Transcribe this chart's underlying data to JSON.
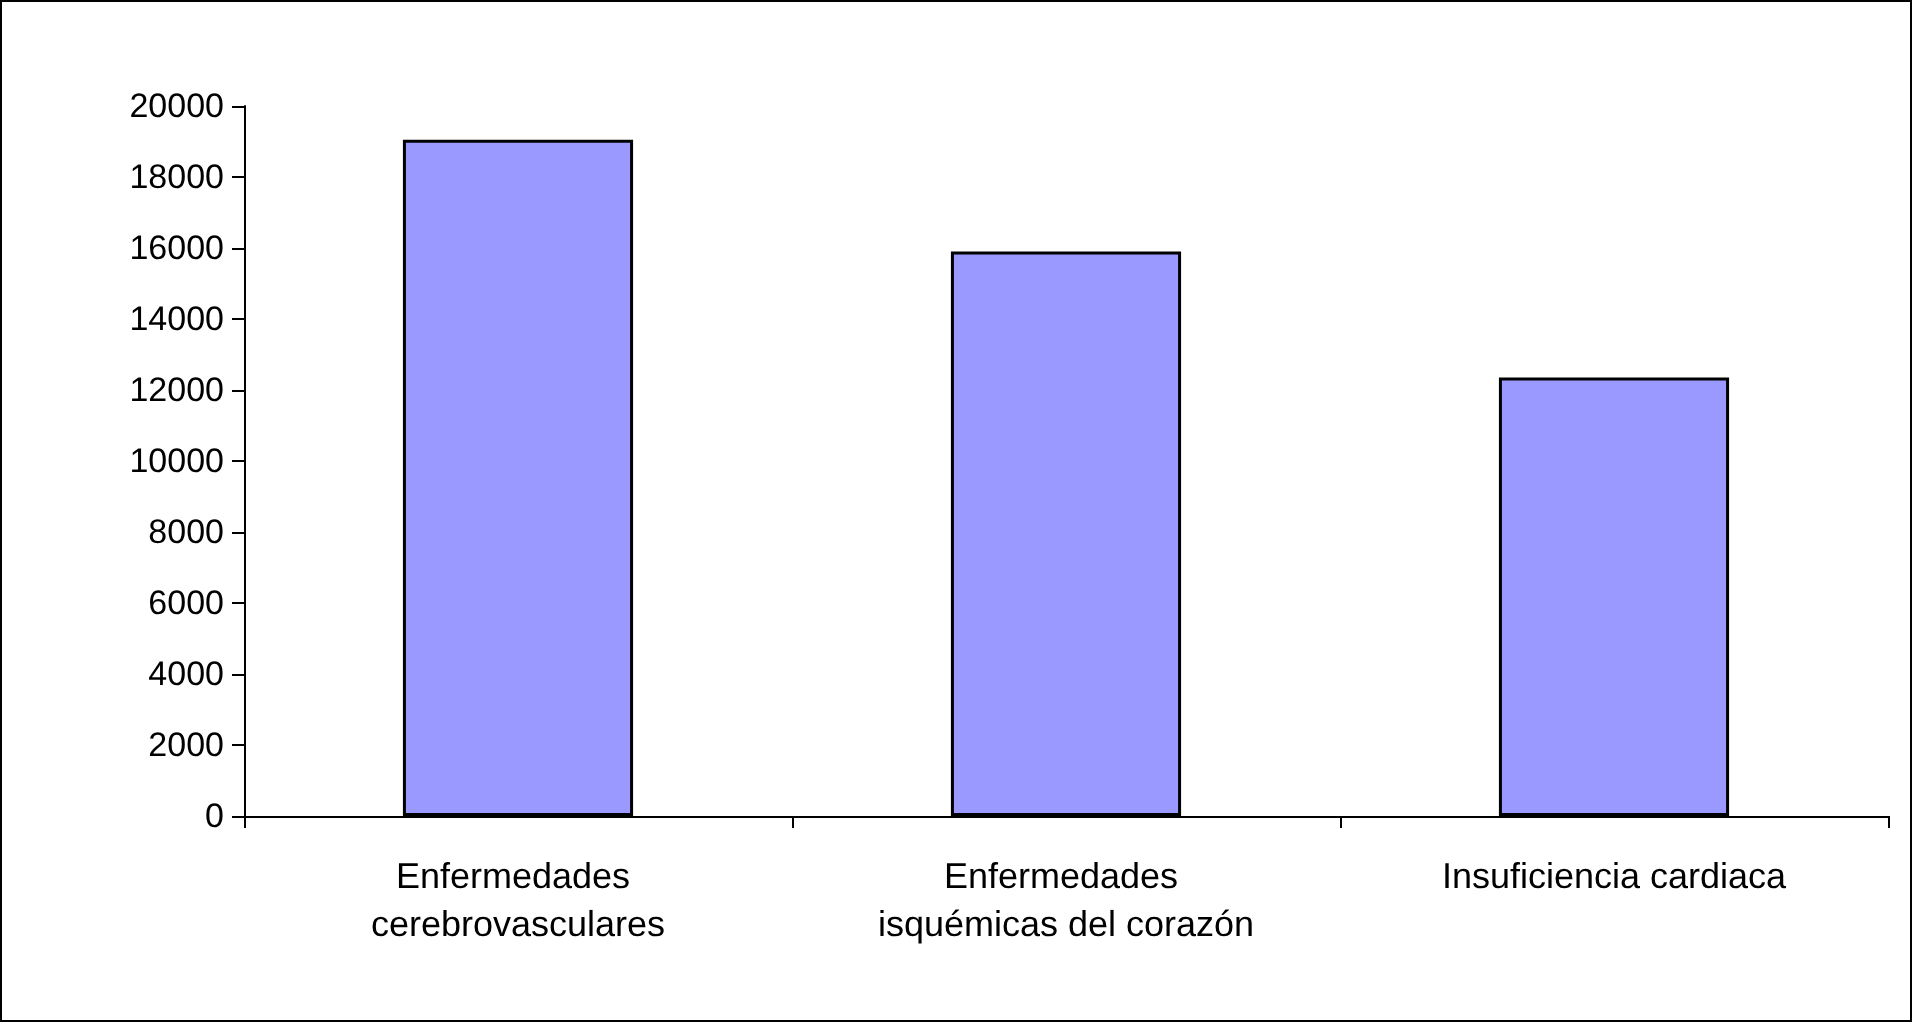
{
  "chart_data": {
    "type": "bar",
    "categories": [
      "Enfermedades cerebrovasculares",
      "Enfermedades isquémicas del corazón",
      "Insuficiencia cardiaca"
    ],
    "values": [
      19050,
      15900,
      12350
    ],
    "color": "#9999ff",
    "ylim": [
      0,
      20000
    ],
    "yticks": [
      0,
      2000,
      4000,
      6000,
      8000,
      10000,
      12000,
      14000,
      16000,
      18000,
      20000
    ],
    "grid": false
  }
}
